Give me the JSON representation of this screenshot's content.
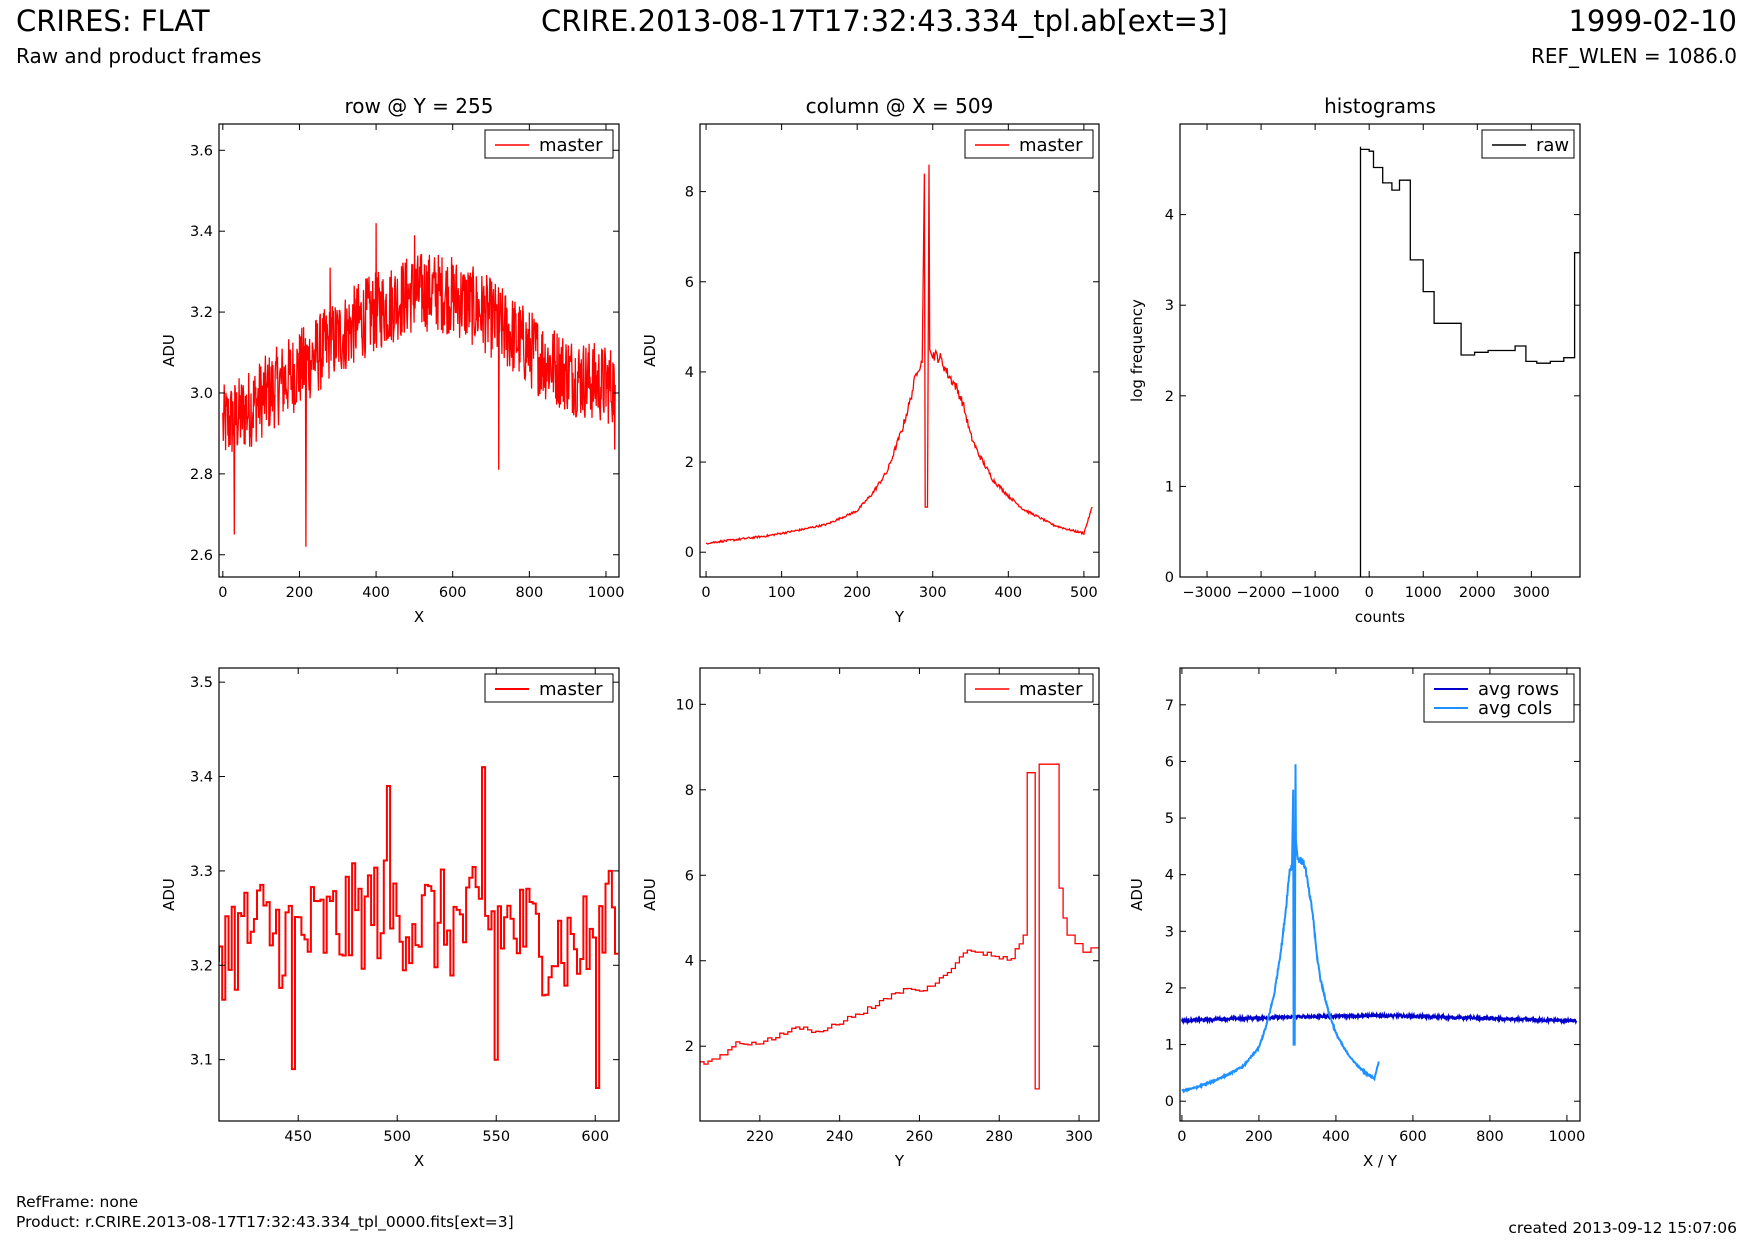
{
  "header": {
    "title": "CRIRES: FLAT",
    "subtitle": "Raw and product frames",
    "filename": "CRIRE.2013-08-17T17:32:43.334_tpl.ab[ext=3]",
    "date": "1999-02-10",
    "ref_wlen": "REF_WLEN = 1086.0"
  },
  "footer": {
    "ref_frame": "RefFrame: none",
    "product": "Product: r.CRIRE.2013-08-17T17:32:43.334_tpl_0000.fits[ext=3]",
    "created": "created 2013-09-12 15:07:06"
  },
  "colors": {
    "master": "#ff0000",
    "raw": "#000000",
    "avg_rows": "#0000cc",
    "avg_cols": "#1e90ff"
  },
  "chart_data": [
    {
      "type": "line",
      "title": "row @ Y = 255",
      "xlabel": "X",
      "ylabel": "ADU",
      "xlim": [
        -10,
        1034
      ],
      "ylim": [
        2.545,
        3.665
      ],
      "xticks": [
        0,
        200,
        400,
        600,
        800,
        1000
      ],
      "yticks": [
        2.6,
        2.8,
        3.0,
        3.2,
        3.4,
        3.6
      ],
      "legend": "top-right",
      "grid": false,
      "series": [
        {
          "name": "master",
          "color": "#ff0000",
          "x": [
            0,
            40,
            80,
            120,
            160,
            200,
            240,
            280,
            320,
            360,
            400,
            440,
            480,
            520,
            560,
            600,
            640,
            680,
            720,
            760,
            800,
            840,
            880,
            920,
            960,
            1000,
            1024
          ],
          "y": [
            2.92,
            2.94,
            2.97,
            3.0,
            3.03,
            3.06,
            3.09,
            3.12,
            3.15,
            3.18,
            3.2,
            3.22,
            3.24,
            3.25,
            3.25,
            3.24,
            3.22,
            3.2,
            3.17,
            3.14,
            3.11,
            3.08,
            3.06,
            3.04,
            3.03,
            3.02,
            3.02
          ],
          "spikes": [
            [
              217,
              2.62
            ],
            [
              30,
              2.65
            ],
            [
              720,
              2.81
            ],
            [
              1023,
              2.86
            ],
            [
              400,
              3.42
            ],
            [
              500,
              3.39
            ],
            [
              280,
              3.31
            ]
          ]
        }
      ]
    },
    {
      "type": "line",
      "title": "column @ X = 509",
      "xlabel": "Y",
      "ylabel": "ADU",
      "xlim": [
        -8,
        520
      ],
      "ylim": [
        -0.55,
        9.5
      ],
      "xticks": [
        0,
        100,
        200,
        300,
        400,
        500
      ],
      "yticks": [
        0,
        2,
        4,
        6,
        8
      ],
      "legend": "top-right",
      "grid": false,
      "series": [
        {
          "name": "master",
          "color": "#ff0000",
          "x": [
            0,
            40,
            80,
            120,
            160,
            200,
            220,
            240,
            260,
            270,
            280,
            286,
            289,
            290,
            293,
            295,
            296,
            300,
            310,
            320,
            330,
            340,
            350,
            360,
            380,
            400,
            420,
            440,
            460,
            480,
            500,
            511
          ],
          "y": [
            0.2,
            0.28,
            0.36,
            0.48,
            0.62,
            0.92,
            1.3,
            1.8,
            2.75,
            3.35,
            4.1,
            4.2,
            8.4,
            1.0,
            1.0,
            8.6,
            4.5,
            4.4,
            4.3,
            3.95,
            3.7,
            3.3,
            2.6,
            2.2,
            1.6,
            1.25,
            0.95,
            0.78,
            0.6,
            0.5,
            0.42,
            1.0
          ]
        }
      ]
    },
    {
      "type": "line",
      "title": "histograms",
      "xlabel": "counts",
      "ylabel": "log frequency",
      "xlim": [
        -3500,
        3900
      ],
      "ylim": [
        0,
        5.0
      ],
      "xticks": [
        -3000,
        -2000,
        -1000,
        0,
        1000,
        2000,
        3000
      ],
      "xtick_labels": [
        "−3000",
        "−2000",
        "−1000",
        "0",
        "1000",
        "2000",
        "3000"
      ],
      "yticks": [
        0,
        1,
        2,
        3,
        4
      ],
      "legend": "top-right",
      "grid": false,
      "series": [
        {
          "name": "raw",
          "color": "#000000",
          "step": true,
          "x": [
            -160,
            -160,
            0,
            80,
            250,
            420,
            560,
            760,
            1000,
            1200,
            1450,
            1700,
            1950,
            2200,
            2450,
            2700,
            2900,
            3100,
            3350,
            3600,
            3800,
            3900
          ],
          "y": [
            0,
            4.75,
            4.72,
            4.7,
            4.52,
            4.35,
            4.27,
            4.38,
            3.5,
            3.15,
            2.8,
            2.8,
            2.45,
            2.48,
            2.5,
            2.5,
            2.55,
            2.38,
            2.36,
            2.38,
            2.42,
            3.58
          ]
        }
      ]
    },
    {
      "type": "line",
      "title": "",
      "xlabel": "X",
      "ylabel": "ADU",
      "xlim": [
        410,
        612
      ],
      "ylim": [
        3.035,
        3.515
      ],
      "xticks": [
        450,
        500,
        550,
        600
      ],
      "yticks": [
        3.1,
        3.2,
        3.3,
        3.4,
        3.5
      ],
      "legend": "top-right",
      "grid": false,
      "series": [
        {
          "name": "master",
          "color": "#ff0000",
          "step": true,
          "x": [
            410,
            430,
            450,
            470,
            490,
            510,
            530,
            550,
            570,
            590,
            610
          ],
          "y": [
            3.22,
            3.24,
            3.23,
            3.24,
            3.26,
            3.25,
            3.24,
            3.25,
            3.23,
            3.22,
            3.23
          ],
          "spikes": [
            [
              449,
              3.09
            ],
            [
              497,
              3.39
            ],
            [
              544,
              3.41
            ],
            [
              551,
              3.1
            ],
            [
              602,
              3.07
            ],
            [
              609,
              3.3
            ]
          ]
        }
      ]
    },
    {
      "type": "line",
      "title": "",
      "xlabel": "Y",
      "ylabel": "ADU",
      "xlim": [
        205,
        305
      ],
      "ylim": [
        0.25,
        10.85
      ],
      "xticks": [
        220,
        240,
        260,
        280,
        300
      ],
      "yticks": [
        2,
        4,
        6,
        8,
        10
      ],
      "legend": "top-right",
      "grid": false,
      "series": [
        {
          "name": "master",
          "color": "#ff0000",
          "step": true,
          "x": [
            205,
            208,
            210,
            212,
            215,
            220,
            225,
            230,
            235,
            240,
            245,
            250,
            255,
            258,
            262,
            266,
            270,
            273,
            276,
            280,
            284,
            287,
            288,
            289,
            290,
            295,
            296,
            297,
            299,
            301,
            303,
            305
          ],
          "y": [
            1.6,
            1.65,
            1.7,
            1.8,
            2.1,
            2.05,
            2.2,
            2.45,
            2.35,
            2.5,
            2.75,
            2.95,
            3.25,
            3.35,
            3.3,
            3.6,
            3.95,
            4.25,
            4.2,
            4.1,
            4.05,
            4.6,
            8.4,
            8.4,
            1.0,
            8.6,
            5.7,
            5.0,
            4.6,
            4.4,
            4.2,
            4.3
          ]
        }
      ]
    },
    {
      "type": "line",
      "title": "",
      "xlabel": "X / Y",
      "ylabel": "ADU",
      "xlim": [
        -5,
        1034
      ],
      "ylim": [
        -0.35,
        7.65
      ],
      "xticks": [
        0,
        200,
        400,
        600,
        800,
        1000
      ],
      "yticks": [
        0,
        1,
        2,
        3,
        4,
        5,
        6,
        7
      ],
      "legend": "top-right",
      "grid": false,
      "series": [
        {
          "name": "avg rows",
          "color": "#0000cc",
          "x": [
            0,
            100,
            200,
            300,
            400,
            500,
            600,
            700,
            800,
            900,
            1000,
            1024
          ],
          "y": [
            1.42,
            1.45,
            1.47,
            1.49,
            1.5,
            1.51,
            1.5,
            1.48,
            1.46,
            1.44,
            1.42,
            1.42
          ]
        },
        {
          "name": "avg cols",
          "color": "#1e90ff",
          "x": [
            0,
            40,
            80,
            120,
            160,
            200,
            220,
            240,
            260,
            270,
            280,
            286,
            289,
            290,
            293,
            295,
            296,
            300,
            310,
            320,
            330,
            340,
            350,
            360,
            380,
            400,
            420,
            440,
            460,
            480,
            500,
            511
          ],
          "y": [
            0.18,
            0.25,
            0.35,
            0.47,
            0.62,
            0.95,
            1.35,
            1.9,
            2.8,
            3.4,
            4.1,
            4.15,
            5.5,
            1.0,
            1.0,
            5.95,
            4.6,
            4.3,
            4.25,
            4.15,
            3.7,
            3.3,
            2.6,
            2.15,
            1.6,
            1.2,
            0.95,
            0.75,
            0.6,
            0.48,
            0.4,
            0.7
          ]
        }
      ]
    }
  ]
}
